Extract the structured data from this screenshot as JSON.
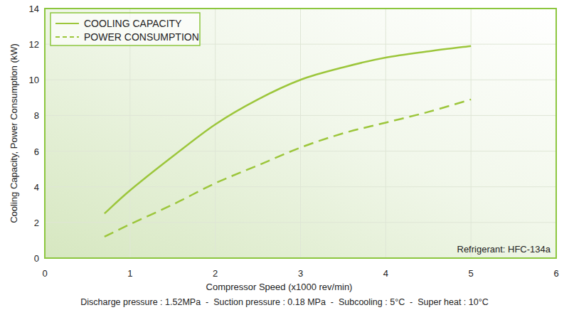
{
  "chart_data": {
    "type": "line",
    "x_label": "Compressor Speed (x1000 rev/min)",
    "y_label": "Cooling Capacity, Power Consumption (kW)",
    "x": [
      0.7,
      1.0,
      1.5,
      2.0,
      2.5,
      3.0,
      3.5,
      4.0,
      4.5,
      5.0
    ],
    "series": [
      {
        "name": "COOLING CAPACITY",
        "color": "#9cc63b",
        "line_style": "solid",
        "values": [
          2.5,
          3.8,
          5.7,
          7.5,
          8.9,
          10.0,
          10.7,
          11.25,
          11.6,
          11.9
        ]
      },
      {
        "name": "POWER CONSUMPTION",
        "color": "#9cc63b",
        "line_style": "dashed",
        "values": [
          1.2,
          1.9,
          3.0,
          4.2,
          5.2,
          6.2,
          7.0,
          7.6,
          8.2,
          8.9
        ]
      }
    ],
    "xlim": [
      0,
      6
    ],
    "xticks": [
      0,
      1,
      2,
      3,
      4,
      5,
      6
    ],
    "ylim": [
      0,
      14
    ],
    "yticks": [
      0,
      2,
      4,
      6,
      8,
      10,
      12,
      14
    ],
    "grid": true,
    "legend": "top-left",
    "annotations": [
      "Refrigerant: HFC-134a",
      "Discharge pressure : 1.52MPa  -  Suction pressure : 0.18 MPa  -  Subcooling : 5°C  -  Super heat : 10°C"
    ]
  }
}
